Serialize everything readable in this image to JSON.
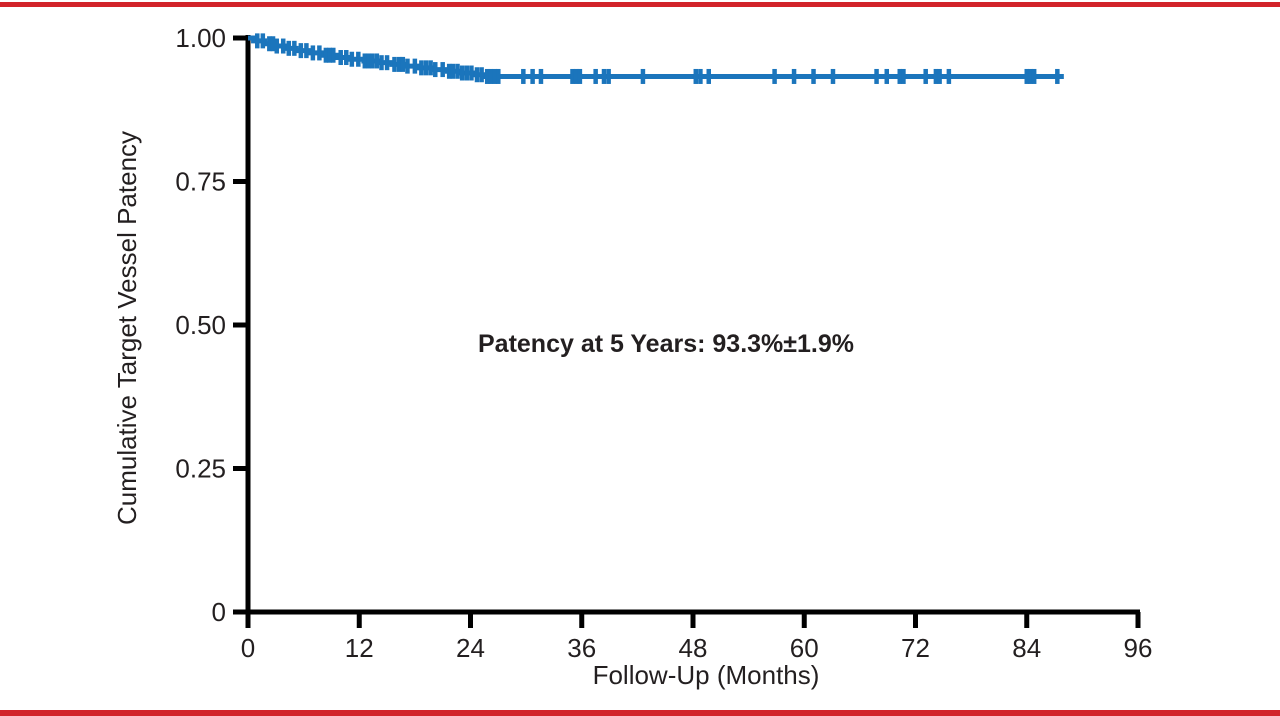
{
  "page": {
    "background": "#ffffff",
    "accent_color": "#d2232a"
  },
  "chart_data": {
    "type": "line",
    "style": "kaplan-meier-step",
    "title": "",
    "xlabel": "Follow-Up (Months)",
    "ylabel": "Cumulative Target Vessel Patency",
    "annotation": "Patency at 5 Years: 93.3%±1.9%",
    "grid": false,
    "legend": false,
    "line_color": "#1b75bc",
    "axis_color": "#000000",
    "text_color": "#231f20",
    "x_axis": {
      "min": 0,
      "max": 96,
      "tick_labels": [
        "0",
        "12",
        "24",
        "36",
        "48",
        "60",
        "72",
        "84",
        "96"
      ],
      "tick_values": [
        0,
        12,
        24,
        36,
        48,
        60,
        72,
        84,
        96
      ]
    },
    "y_axis": {
      "min": 0,
      "max": 1,
      "tick_labels": [
        "1.00",
        "0.75",
        "0.50",
        "0.25",
        "0"
      ],
      "tick_values": [
        1.0,
        0.75,
        0.5,
        0.25,
        0
      ]
    },
    "series": [
      {
        "name": "Cumulative target vessel patency",
        "steps": [
          [
            0,
            1.0
          ],
          [
            0.6,
            0.995
          ],
          [
            1.8,
            0.99
          ],
          [
            2.8,
            0.986
          ],
          [
            4,
            0.982
          ],
          [
            5.2,
            0.978
          ],
          [
            6.6,
            0.974
          ],
          [
            8,
            0.97
          ],
          [
            9.5,
            0.966
          ],
          [
            11,
            0.963
          ],
          [
            12.5,
            0.96
          ],
          [
            14,
            0.957
          ],
          [
            15.5,
            0.954
          ],
          [
            17,
            0.951
          ],
          [
            18.5,
            0.948
          ],
          [
            20,
            0.945
          ],
          [
            21.5,
            0.942
          ],
          [
            23,
            0.939
          ],
          [
            24.3,
            0.936
          ],
          [
            25.5,
            0.933
          ]
        ],
        "end_month": 88,
        "censor_months": [
          1.0,
          1.6,
          2.3,
          2.7,
          3.1,
          3.8,
          4.4,
          5.0,
          5.7,
          6.3,
          7.0,
          7.7,
          8.4,
          8.8,
          9.2,
          10.0,
          10.6,
          11.2,
          11.9,
          12.6,
          13.0,
          13.4,
          13.9,
          14.4,
          15.0,
          15.8,
          16.3,
          16.7,
          17.2,
          18.0,
          18.7,
          19.2,
          19.7,
          20.2,
          21.0,
          21.7,
          22.1,
          22.6,
          23.1,
          23.6,
          24.1,
          24.7,
          25.2,
          25.8,
          26.2,
          26.6,
          27.0,
          29.7,
          30.7,
          31.6,
          35.0,
          35.4,
          35.8,
          37.5,
          38.4,
          38.9,
          42.6,
          48.3,
          48.8,
          49.7,
          56.8,
          58.9,
          61.0,
          63.1,
          67.8,
          68.9,
          70.3,
          70.7,
          73.1,
          74.2,
          74.6,
          75.6,
          84.0,
          84.4,
          84.8,
          87.3
        ]
      }
    ]
  }
}
